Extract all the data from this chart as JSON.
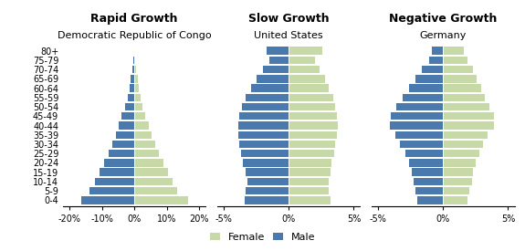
{
  "age_groups": [
    "0-4",
    "5-9",
    "10-14",
    "15-19",
    "20-24",
    "25-29",
    "30-34",
    "35-39",
    "40-44",
    "45-49",
    "50-54",
    "55-59",
    "60-64",
    "65-69",
    "70-74",
    "75-79",
    "80+"
  ],
  "congo": {
    "title": "Rapid Growth",
    "subtitle": "Democratic Republic of Congo",
    "male": [
      -16.5,
      -13.8,
      -12.2,
      -10.8,
      -9.3,
      -7.9,
      -6.7,
      -5.7,
      -4.8,
      -3.9,
      -2.9,
      -2.1,
      -1.5,
      -1.1,
      -0.65,
      -0.35,
      -0.15
    ],
    "female": [
      16.5,
      13.2,
      11.7,
      10.3,
      8.8,
      7.4,
      6.3,
      5.3,
      4.3,
      3.4,
      2.6,
      1.9,
      1.4,
      1.0,
      0.55,
      0.28,
      0.12
    ],
    "xlim": [
      -22,
      22
    ],
    "xticks": [
      -20,
      -10,
      0,
      10,
      20
    ],
    "xticklabels": [
      "-20%",
      "-10%",
      "0%",
      "10%",
      "20%"
    ]
  },
  "us": {
    "title": "Slow Growth",
    "subtitle": "United States",
    "male": [
      -3.4,
      -3.3,
      -3.2,
      -3.3,
      -3.5,
      -3.7,
      -3.8,
      -3.9,
      -3.9,
      -3.8,
      -3.6,
      -3.3,
      -2.9,
      -2.5,
      -2.0,
      -1.5,
      -1.7
    ],
    "female": [
      3.2,
      3.1,
      3.1,
      3.2,
      3.3,
      3.5,
      3.6,
      3.7,
      3.8,
      3.7,
      3.6,
      3.4,
      3.1,
      2.8,
      2.4,
      2.0,
      2.6
    ],
    "xlim": [
      -5.5,
      5.5
    ],
    "xticks": [
      -5,
      0,
      5
    ],
    "xticklabels": [
      "-5%",
      "0%",
      "5%"
    ]
  },
  "germany": {
    "title": "Negative Growth",
    "subtitle": "Germany",
    "male": [
      -2.0,
      -2.1,
      -2.3,
      -2.4,
      -2.6,
      -2.9,
      -3.3,
      -3.7,
      -4.1,
      -4.0,
      -3.6,
      -3.1,
      -2.6,
      -2.1,
      -1.6,
      -1.1,
      -0.85
    ],
    "female": [
      1.9,
      2.0,
      2.2,
      2.3,
      2.5,
      2.8,
      3.1,
      3.4,
      3.9,
      3.9,
      3.6,
      3.2,
      2.9,
      2.6,
      2.3,
      1.9,
      1.6
    ],
    "xlim": [
      -5.5,
      5.5
    ],
    "xticks": [
      -5,
      0,
      5
    ],
    "xticklabels": [
      "-5%",
      "0%",
      "5%"
    ]
  },
  "male_color": "#4a7aad",
  "female_color": "#c8d9a8",
  "bar_height": 0.82,
  "title_fontsize": 9,
  "subtitle_fontsize": 8,
  "tick_fontsize": 7,
  "label_fontsize": 8
}
